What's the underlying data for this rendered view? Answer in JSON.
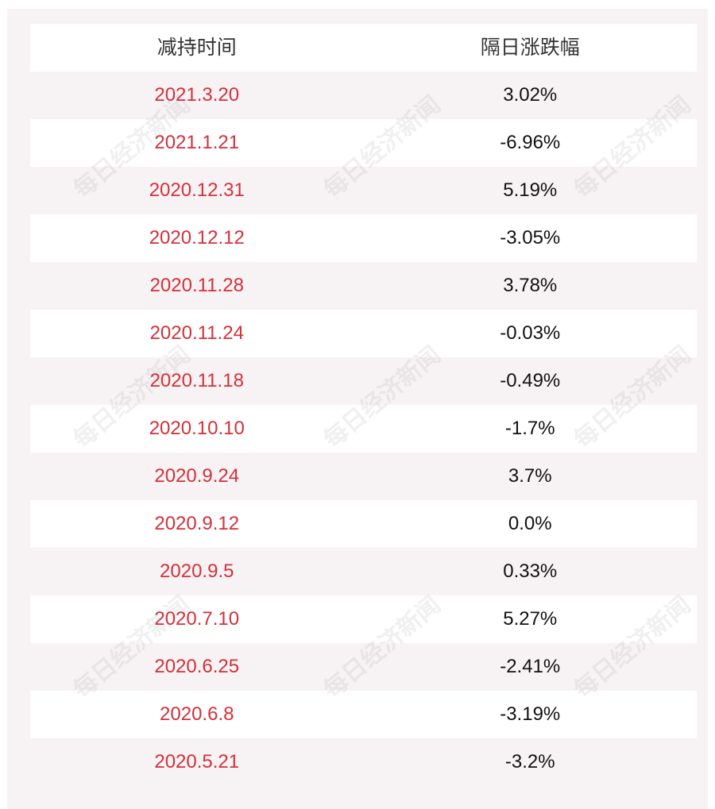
{
  "table": {
    "headers": {
      "date": "减持时间",
      "change": "隔日涨跌幅"
    },
    "rows": [
      {
        "date": "2021.3.20",
        "change": "3.02%"
      },
      {
        "date": "2021.1.21",
        "change": "-6.96%"
      },
      {
        "date": "2020.12.31",
        "change": "5.19%"
      },
      {
        "date": "2020.12.12",
        "change": "-3.05%"
      },
      {
        "date": "2020.11.28",
        "change": "3.78%"
      },
      {
        "date": "2020.11.24",
        "change": "-0.03%"
      },
      {
        "date": "2020.11.18",
        "change": "-0.49%"
      },
      {
        "date": "2020.10.10",
        "change": "-1.7%"
      },
      {
        "date": "2020.9.24",
        "change": "3.7%"
      },
      {
        "date": "2020.9.12",
        "change": "0.0%"
      },
      {
        "date": "2020.9.5",
        "change": "0.33%"
      },
      {
        "date": "2020.7.10",
        "change": "5.27%"
      },
      {
        "date": "2020.6.25",
        "change": "-2.41%"
      },
      {
        "date": "2020.6.8",
        "change": "-3.19%"
      },
      {
        "date": "2020.5.21",
        "change": "-3.2%"
      }
    ]
  },
  "watermark": {
    "text": "每日经济新闻"
  },
  "colors": {
    "date_text": "#d4303a",
    "panel_bg": "#f7f3f4",
    "row_alt_bg": "#ffffff"
  }
}
